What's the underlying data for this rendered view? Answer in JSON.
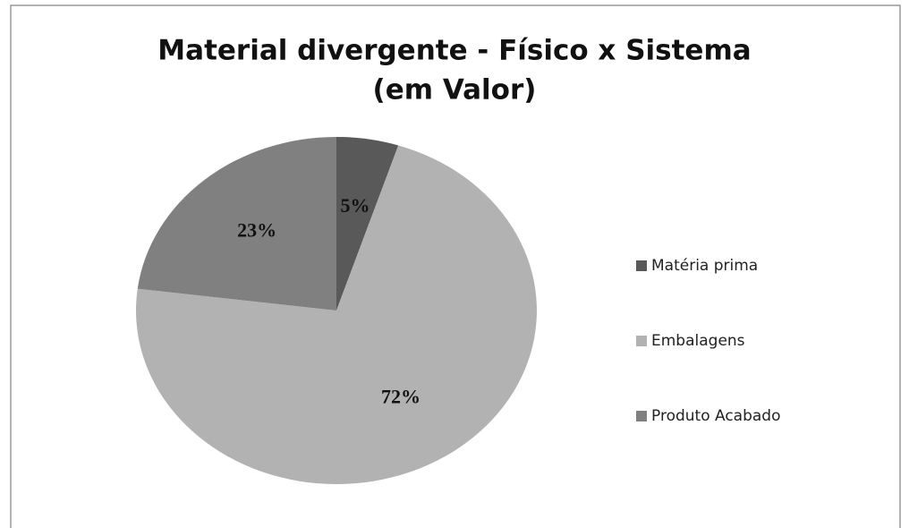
{
  "chart_data": {
    "type": "pie",
    "title": [
      "Material divergente - Físico x Sistema",
      "(em Valor)"
    ],
    "categories": [
      "Matéria prima",
      "Embalagens",
      "Produto Acabado"
    ],
    "values": [
      5,
      72,
      23
    ],
    "value_labels": [
      "5%",
      "72%",
      "23%"
    ],
    "colors": [
      "#595959",
      "#b2b2b2",
      "#808080"
    ],
    "legend": "right"
  }
}
